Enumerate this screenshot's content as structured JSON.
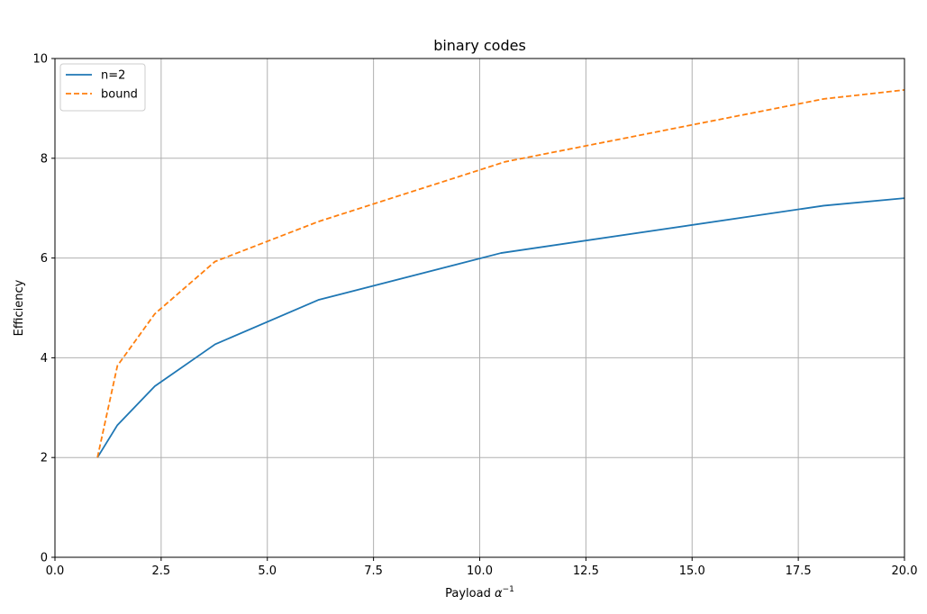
{
  "chart_data": {
    "type": "line",
    "title": "binary codes",
    "xlabel_text": "Payload ",
    "xlabel_symbol": "α",
    "xlabel_exponent": "−1",
    "ylabel": "Efficiency",
    "xlim": [
      0,
      20
    ],
    "ylim": [
      0,
      10
    ],
    "xticks": [
      "0.0",
      "2.5",
      "5.0",
      "7.5",
      "10.0",
      "12.5",
      "15.0",
      "17.5",
      "20.0"
    ],
    "yticks": [
      "0",
      "2",
      "4",
      "6",
      "8",
      "10"
    ],
    "grid": true,
    "legend_position": "top-left",
    "series": [
      {
        "name": "n=2",
        "color": "#1f77b4",
        "dash": "solid",
        "points": [
          [
            1.0,
            2.0
          ],
          [
            1.47,
            2.65
          ],
          [
            2.35,
            3.43
          ],
          [
            3.77,
            4.27
          ],
          [
            6.2,
            5.16
          ],
          [
            10.5,
            6.1
          ],
          [
            18.1,
            7.05
          ],
          [
            20.0,
            7.2
          ]
        ]
      },
      {
        "name": "bound",
        "color": "#ff7f0e",
        "dash": "dashed",
        "points": [
          [
            1.0,
            2.0
          ],
          [
            1.47,
            3.84
          ],
          [
            2.35,
            4.88
          ],
          [
            3.77,
            5.93
          ],
          [
            6.2,
            6.73
          ],
          [
            10.6,
            7.93
          ],
          [
            18.1,
            9.19
          ],
          [
            20.0,
            9.37
          ]
        ]
      }
    ]
  }
}
